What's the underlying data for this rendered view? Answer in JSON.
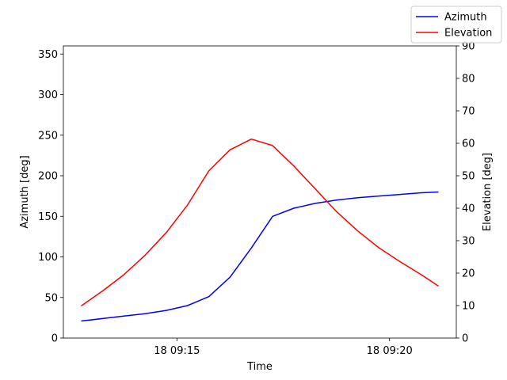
{
  "chart_data": {
    "type": "line",
    "xlabel": "Time",
    "ylabel_left": "Azimuth [deg]",
    "ylabel_right": "Elevation [deg]",
    "x_ticks": [
      {
        "t": 15.0,
        "label": "18 09:15"
      },
      {
        "t": 20.0,
        "label": "18 09:20"
      }
    ],
    "xlim": [
      12.33,
      21.57
    ],
    "ylim_left": [
      0,
      360
    ],
    "ylim_right": [
      0,
      90
    ],
    "yticks_left": [
      0,
      50,
      100,
      150,
      200,
      250,
      300,
      350
    ],
    "yticks_right": [
      0,
      10,
      20,
      30,
      40,
      50,
      60,
      70,
      80,
      90
    ],
    "x": [
      12.75,
      13.25,
      13.75,
      14.25,
      14.75,
      15.25,
      15.75,
      16.25,
      16.75,
      17.25,
      17.75,
      18.25,
      18.75,
      19.25,
      19.75,
      20.25,
      20.75,
      21.15
    ],
    "series": [
      {
        "name": "Azimuth",
        "axis": "left",
        "color": "#0000ff",
        "values": [
          21,
          24,
          27,
          30,
          34,
          40,
          51,
          75,
          111,
          150,
          160,
          166,
          170,
          173,
          175,
          177,
          179,
          180
        ]
      },
      {
        "name": "Elevation",
        "axis": "right",
        "color": "#ff0000",
        "values": [
          9.9,
          14.5,
          19.5,
          25.5,
          32.5,
          41,
          51.5,
          58,
          61.3,
          59.3,
          53,
          46,
          39,
          33,
          27.8,
          23.5,
          19.5,
          16
        ]
      }
    ],
    "legend": {
      "placement": "top-right",
      "entries": [
        {
          "label": "Azimuth",
          "color": "#0000ff"
        },
        {
          "label": "Elevation",
          "color": "#ff0000"
        }
      ]
    },
    "grid": false
  }
}
